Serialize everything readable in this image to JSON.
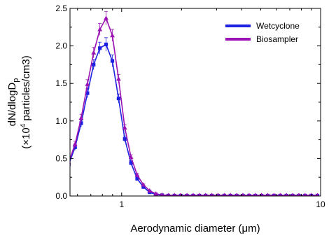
{
  "chart_data": {
    "type": "line",
    "xlabel": "Aerodynamic diameter (μm)",
    "ylabel_line1": "dN/dlogD",
    "ylabel_line1_sub": "p",
    "ylabel_line2_prefix": "(×10",
    "ylabel_line2_sup": "4",
    "ylabel_line2_suffix": " particles/cm3)",
    "xscale": "log",
    "xlim": [
      0.55,
      10
    ],
    "ylim": [
      0,
      2.5
    ],
    "xticks": [
      1,
      10
    ],
    "xtick_labels": [
      "1",
      "10"
    ],
    "yticks": [
      0.0,
      0.5,
      1.0,
      1.5,
      2.0,
      2.5
    ],
    "ytick_labels": [
      "0.0",
      "0.5",
      "1.0",
      "1.5",
      "2.0",
      "2.5"
    ],
    "legend_position": "top-right",
    "x": [
      0.542,
      0.583,
      0.626,
      0.673,
      0.723,
      0.777,
      0.835,
      0.898,
      0.965,
      1.037,
      1.114,
      1.197,
      1.286,
      1.382,
      1.486,
      1.596,
      1.715,
      1.843,
      1.981,
      2.129,
      2.288,
      2.458,
      2.642,
      2.839,
      3.051,
      3.278,
      3.523,
      3.786,
      4.068,
      4.371,
      4.698,
      5.048,
      5.425,
      5.829,
      6.264,
      6.732,
      7.234,
      7.774,
      8.354,
      8.977,
      9.647
    ],
    "series": [
      {
        "name": "Wetcyclone",
        "color": "#1f22e0",
        "marker": "square",
        "values": [
          0.42,
          0.65,
          0.97,
          1.37,
          1.75,
          1.97,
          2.02,
          1.8,
          1.3,
          0.76,
          0.44,
          0.23,
          0.12,
          0.05,
          0.02,
          0.01,
          0.005,
          0.005,
          0.005,
          0.005,
          0.005,
          0.005,
          0.005,
          0.005,
          0.005,
          0.005,
          0.005,
          0.005,
          0.005,
          0.005,
          0.005,
          0.005,
          0.005,
          0.005,
          0.005,
          0.005,
          0.005,
          0.005,
          0.005,
          0.005,
          0.005
        ],
        "errors": [
          0.03,
          0.04,
          0.05,
          0.06,
          0.07,
          0.08,
          0.09,
          0.08,
          0.06,
          0.04,
          0.03,
          0.02,
          0.01,
          0.01,
          0.01,
          0.005,
          0.005,
          0.005,
          0.005,
          0.005,
          0.005,
          0.005,
          0.005,
          0.005,
          0.005,
          0.005,
          0.005,
          0.005,
          0.005,
          0.005,
          0.005,
          0.005,
          0.005,
          0.005,
          0.005,
          0.005,
          0.005,
          0.005,
          0.005,
          0.005,
          0.005
        ]
      },
      {
        "name": "Biosampler",
        "color": "#9a12b3",
        "marker": "triangle",
        "values": [
          0.45,
          0.69,
          1.04,
          1.49,
          1.91,
          2.22,
          2.37,
          2.14,
          1.56,
          0.91,
          0.52,
          0.28,
          0.15,
          0.07,
          0.03,
          0.015,
          0.01,
          0.01,
          0.01,
          0.01,
          0.01,
          0.01,
          0.01,
          0.01,
          0.01,
          0.01,
          0.01,
          0.01,
          0.01,
          0.01,
          0.01,
          0.01,
          0.01,
          0.01,
          0.01,
          0.01,
          0.01,
          0.01,
          0.01,
          0.01,
          0.01
        ],
        "errors": [
          0.03,
          0.04,
          0.05,
          0.06,
          0.07,
          0.08,
          0.09,
          0.08,
          0.06,
          0.04,
          0.03,
          0.02,
          0.01,
          0.01,
          0.01,
          0.005,
          0.005,
          0.005,
          0.005,
          0.005,
          0.005,
          0.005,
          0.005,
          0.005,
          0.005,
          0.005,
          0.005,
          0.005,
          0.005,
          0.005,
          0.005,
          0.005,
          0.005,
          0.005,
          0.005,
          0.005,
          0.005,
          0.005,
          0.005,
          0.005,
          0.005
        ]
      }
    ]
  }
}
